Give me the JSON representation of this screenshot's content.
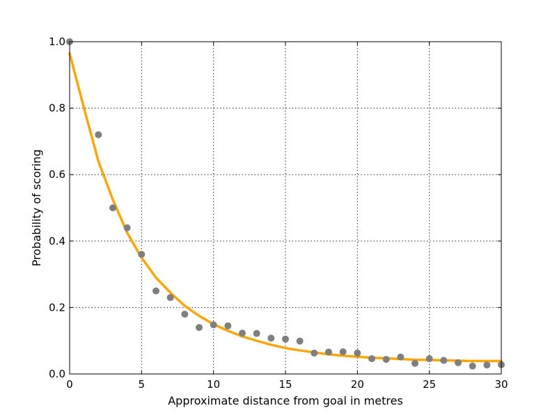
{
  "chart_data": {
    "type": "scatter",
    "title": "",
    "xlabel": "Approximate distance from goal in metres",
    "ylabel": "Probability of scoring",
    "xlim": [
      0,
      30
    ],
    "ylim": [
      0,
      1.0
    ],
    "xticks": [
      0,
      5,
      10,
      15,
      20,
      25,
      30
    ],
    "yticks": [
      0.0,
      0.2,
      0.4,
      0.6,
      0.8,
      1.0
    ],
    "xtick_labels": [
      "0",
      "5",
      "10",
      "15",
      "20",
      "25",
      "30"
    ],
    "ytick_labels": [
      "0.0",
      "0.2",
      "0.4",
      "0.6",
      "0.8",
      "1.0"
    ],
    "grid": true,
    "legend": "none",
    "series": [
      {
        "kind": "scatter",
        "color": "#7f7f7f",
        "x": [
          0,
          2,
          3,
          4,
          5,
          6,
          7,
          8,
          9,
          10,
          11,
          12,
          13,
          14,
          15,
          16,
          17,
          18,
          19,
          20,
          21,
          22,
          23,
          24,
          25,
          26,
          27,
          28,
          29,
          30
        ],
        "y": [
          1.0,
          0.72,
          0.5,
          0.44,
          0.36,
          0.25,
          0.23,
          0.18,
          0.14,
          0.148,
          0.145,
          0.123,
          0.122,
          0.108,
          0.105,
          0.099,
          0.063,
          0.066,
          0.067,
          0.063,
          0.046,
          0.044,
          0.051,
          0.032,
          0.046,
          0.041,
          0.034,
          0.024,
          0.027,
          0.028
        ]
      },
      {
        "kind": "line",
        "color": "#ffa500",
        "x": [
          0,
          1,
          2,
          3,
          4,
          5,
          6,
          7,
          8,
          9,
          10,
          11,
          12,
          13,
          14,
          15,
          16,
          17,
          18,
          19,
          20,
          21,
          22,
          23,
          24,
          25,
          26,
          27,
          28,
          29,
          30
        ],
        "y": [
          0.965,
          0.8,
          0.64,
          0.525,
          0.425,
          0.35,
          0.29,
          0.245,
          0.205,
          0.175,
          0.15,
          0.13,
          0.113,
          0.1,
          0.088,
          0.078,
          0.071,
          0.065,
          0.059,
          0.055,
          0.052,
          0.049,
          0.047,
          0.045,
          0.043,
          0.042,
          0.041,
          0.04,
          0.039,
          0.039,
          0.039
        ]
      }
    ]
  }
}
